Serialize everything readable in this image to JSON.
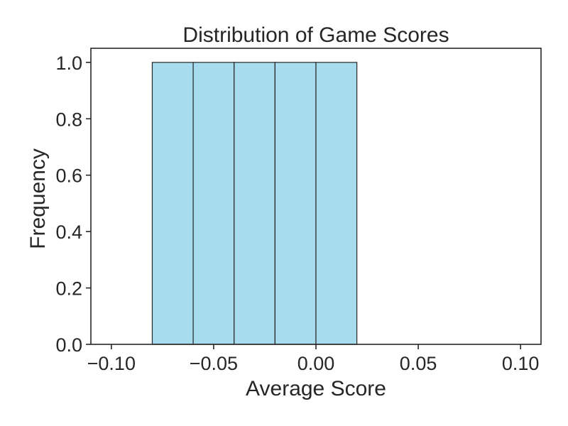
{
  "chart_data": {
    "type": "bar",
    "title": "Distribution of Game Scores",
    "xlabel": "Average Score",
    "ylabel": "Frequency",
    "xlim": [
      -0.11,
      0.11
    ],
    "ylim": [
      0,
      1.05
    ],
    "x_ticks": [
      -0.1,
      -0.05,
      0.0,
      0.05,
      0.1
    ],
    "x_tick_labels": [
      "−0.10",
      "−0.05",
      "0.00",
      "0.05",
      "0.10"
    ],
    "y_ticks": [
      0.0,
      0.2,
      0.4,
      0.6,
      0.8,
      1.0
    ],
    "y_tick_labels": [
      "0.0",
      "0.2",
      "0.4",
      "0.6",
      "0.8",
      "1.0"
    ],
    "bins": [
      {
        "start": -0.08,
        "end": -0.06,
        "count": 1
      },
      {
        "start": -0.06,
        "end": -0.04,
        "count": 1
      },
      {
        "start": -0.04,
        "end": -0.02,
        "count": 1
      },
      {
        "start": -0.02,
        "end": 0.0,
        "count": 1
      },
      {
        "start": 0.0,
        "end": 0.02,
        "count": 1
      }
    ],
    "bar_color": "#a7dbee",
    "edge_color": "#262626",
    "grid": false,
    "legend": "none"
  }
}
